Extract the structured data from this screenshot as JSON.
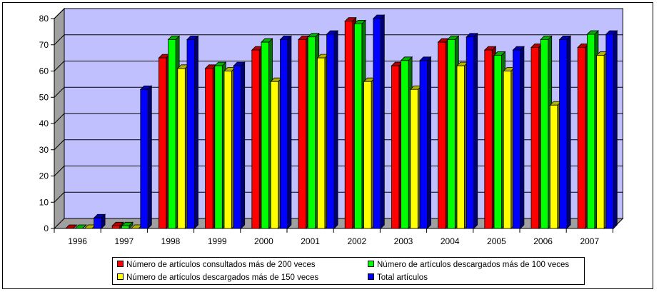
{
  "chart_data": {
    "type": "bar",
    "categories": [
      "1996",
      "1997",
      "1998",
      "1999",
      "2000",
      "2001",
      "2002",
      "2003",
      "2004",
      "2005",
      "2006",
      "2007"
    ],
    "series": [
      {
        "name": "Número de artículos consultados más de 200 veces",
        "color": "#ff0000",
        "values": [
          0,
          1,
          65,
          61,
          68,
          72,
          79,
          62,
          71,
          68,
          69,
          69
        ]
      },
      {
        "name": "Número de artículos descargados más de 100 veces",
        "color": "#00ff00",
        "values": [
          0,
          1,
          72,
          62,
          71,
          73,
          78,
          64,
          72,
          66,
          72,
          74
        ]
      },
      {
        "name": "Número de artículos descargados más de 150 veces",
        "color": "#ffff00",
        "values": [
          0,
          0,
          61,
          60,
          56,
          65,
          56,
          53,
          62,
          60,
          47,
          66
        ]
      },
      {
        "name": "Total artículos",
        "color": "#0000ff",
        "values": [
          4,
          53,
          72,
          62,
          72,
          74,
          80,
          64,
          73,
          68,
          72,
          74
        ]
      }
    ],
    "ylim": [
      0,
      80
    ],
    "yticks": [
      0,
      10,
      20,
      30,
      40,
      50,
      60,
      70,
      80
    ],
    "grid": true,
    "legend_position": "bottom",
    "plot_background": "#c0c0ff",
    "title": "",
    "xlabel": "",
    "ylabel": ""
  }
}
